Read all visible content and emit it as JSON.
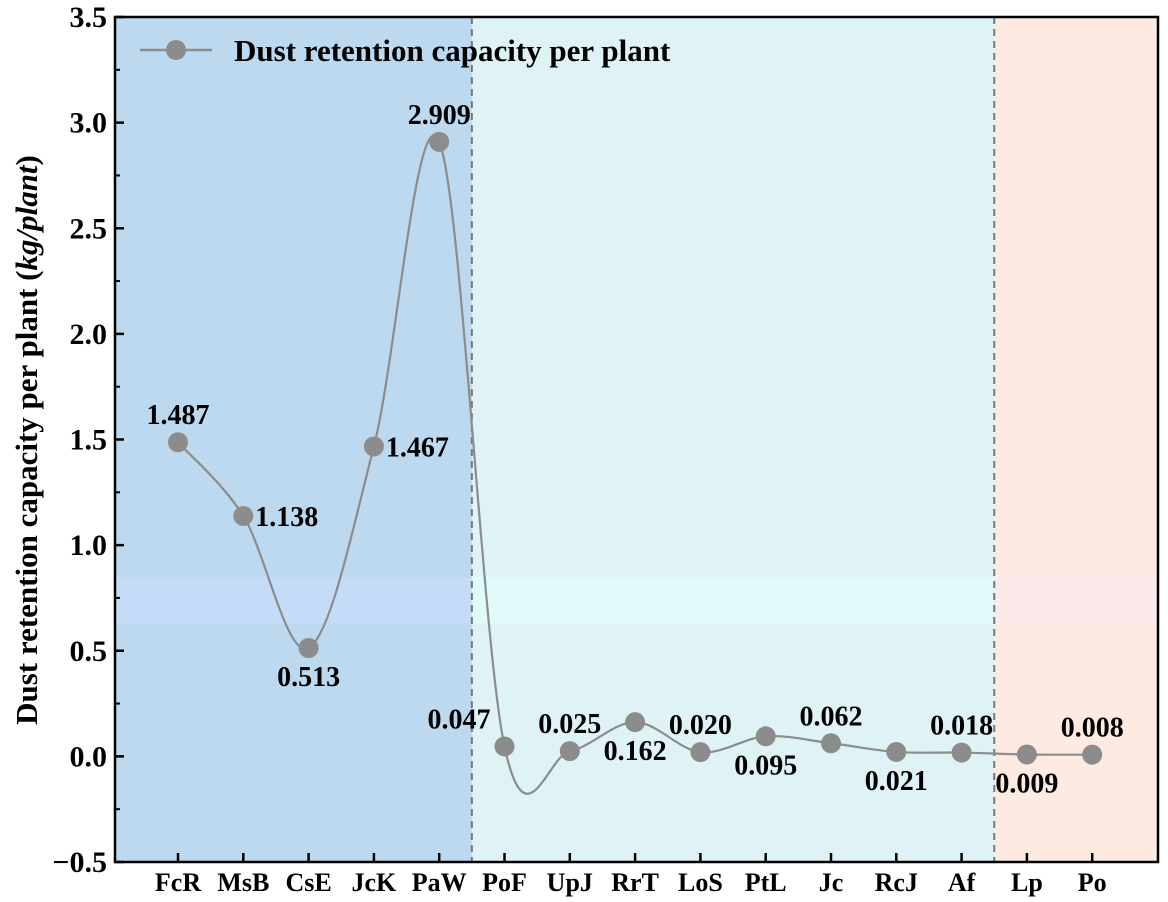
{
  "chart_data": {
    "type": "line",
    "series_name": "Dust retention capacity per plant",
    "ylabel_prefix": "Dust retention capacity per plant (",
    "ylabel_unit": "kg/plant",
    "ylabel_suffix": ")",
    "ylim": [
      -0.5,
      3.5
    ],
    "yticks": [
      -0.5,
      0.0,
      0.5,
      1.0,
      1.5,
      2.0,
      2.5,
      3.0,
      3.5
    ],
    "ytick_labels": [
      "−0.5",
      "0.0",
      "0.5",
      "1.0",
      "1.5",
      "2.0",
      "2.5",
      "3.0",
      "3.5"
    ],
    "categories": [
      "FcR",
      "MsB",
      "CsE",
      "JcK",
      "PaW",
      "PoF",
      "UpJ",
      "RrT",
      "LoS",
      "PtL",
      "Jc",
      "RcJ",
      "Af",
      "Lp",
      "Po"
    ],
    "values": [
      1.487,
      1.138,
      0.513,
      1.467,
      2.909,
      0.047,
      0.025,
      0.162,
      0.02,
      0.095,
      0.062,
      0.021,
      0.018,
      0.009,
      0.008
    ],
    "value_labels": [
      "1.487",
      "1.138",
      "0.513",
      "1.467",
      "2.909",
      "0.047",
      "0.025",
      "0.162",
      "0.020",
      "0.095",
      "0.062",
      "0.021",
      "0.018",
      "0.009",
      "0.008"
    ],
    "label_placement": [
      "above",
      "right",
      "below",
      "right",
      "above",
      "above-left",
      "above",
      "below",
      "above",
      "below",
      "above",
      "below",
      "above",
      "below",
      "above"
    ],
    "regions": [
      {
        "from_category_index": 0,
        "to_category_index": 4,
        "color": "#bcd9ef"
      },
      {
        "from_category_index": 5,
        "to_category_index": 12,
        "color": "#dff3f6"
      },
      {
        "from_category_index": 13,
        "to_category_index": 14,
        "color": "#fdebe1"
      }
    ],
    "band": {
      "y_from": 0.63,
      "y_to": 0.85,
      "colors": [
        "#c6dcf9",
        "#e2fbfb",
        "#fbe9ea"
      ]
    },
    "colors": {
      "line": "#8c8c8c",
      "marker": "#8c8c8c",
      "divider": "#777777"
    },
    "legend_position": "top-left"
  }
}
